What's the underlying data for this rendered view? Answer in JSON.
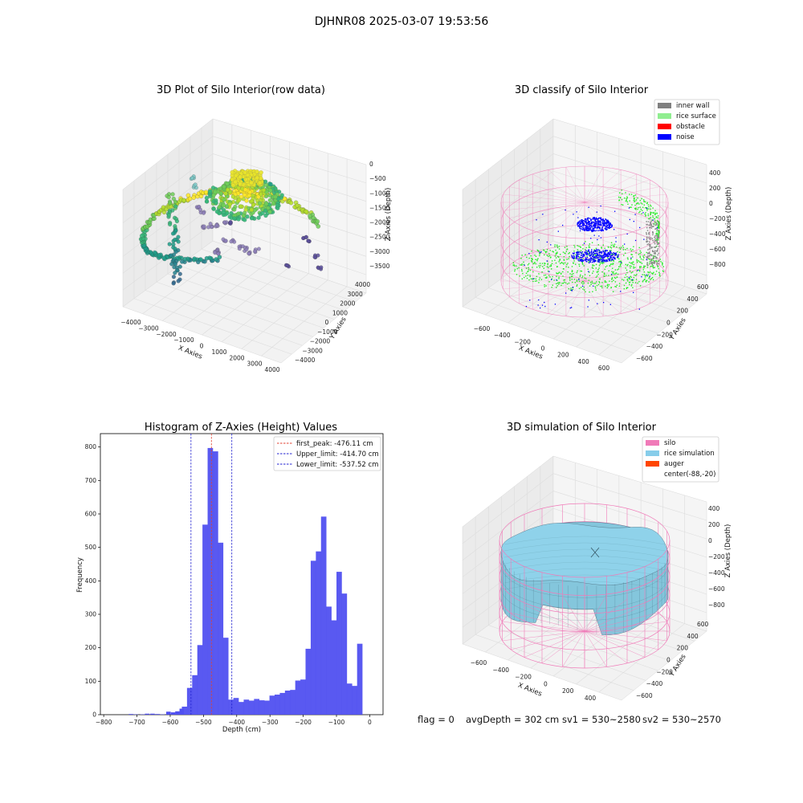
{
  "figure_title": "DJHNR08 2025-03-07 19:53:56",
  "colors": {
    "hist_bar": "#5050f0",
    "first_peak_line": "#e04030",
    "limit_line": "#2020d0",
    "silo_pink": "#f07ab8",
    "rice_blue": "#87cdea",
    "inner_wall": "#808080",
    "rice_surface": "#90ee90",
    "obstacle": "#ff0000",
    "noise": "#0000ff",
    "auger": "#ff4500",
    "point_green": "#3cc060",
    "point_blue": "#2080ff"
  },
  "status": {
    "flag": "flag = 0",
    "avg_depth": "avgDepth = 302 cm",
    "sv1": "sv1 = 530~2580",
    "sv2": "sv2 = 530~2570"
  },
  "chart_data": [
    {
      "id": "raw-plot",
      "type": "scatter",
      "title": "3D Plot of Silo Interior(row data)",
      "xlabel": "X Axies",
      "ylabel": "Y Axies",
      "zlabel": "Z Axies (Depth)",
      "x_ticks": [
        "−4000",
        "−3000",
        "−2000",
        "−1000",
        "0",
        "1000",
        "2000",
        "3000",
        "4000"
      ],
      "y_ticks": [
        "−4000",
        "−3000",
        "−2000",
        "−1000",
        "0",
        "1000",
        "2000",
        "3000",
        "4000"
      ],
      "z_ticks": [
        "0",
        "−500",
        "−1000",
        "−1500",
        "−2000",
        "−2500",
        "−3000",
        "−3500"
      ],
      "xlim": [
        -4500,
        4000
      ],
      "ylim": [
        -4500,
        4500
      ],
      "zlim": [
        -3800,
        200
      ]
    },
    {
      "id": "classify-plot",
      "type": "scatter",
      "title": "3D classify of Silo Interior",
      "xlabel": "X Axies",
      "ylabel": "Y Axies",
      "zlabel": "Z Axies (Depth)",
      "x_ticks": [
        "−600",
        "−400",
        "−200",
        "0",
        "200",
        "400",
        "600"
      ],
      "y_ticks": [
        "−600",
        "−400",
        "−200",
        "0",
        "200",
        "400",
        "600"
      ],
      "z_ticks": [
        "400",
        "200",
        "0",
        "−200",
        "−400",
        "−600",
        "−800"
      ],
      "xlim": [
        -700,
        650
      ],
      "ylim": [
        -700,
        700
      ],
      "zlim": [
        -900,
        450
      ],
      "legend": [
        {
          "label": "inner wall",
          "color_key": "inner_wall"
        },
        {
          "label": "rice surface",
          "color_key": "rice_surface"
        },
        {
          "label": "obstacle",
          "color_key": "obstacle"
        },
        {
          "label": "noise",
          "color_key": "noise"
        }
      ]
    },
    {
      "id": "histogram",
      "type": "bar",
      "title": "Histogram of Z-Axies (Height) Values",
      "xlabel": "Depth (cm)",
      "ylabel": "Frequency",
      "xlim": [
        -810,
        40
      ],
      "ylim": [
        0,
        840
      ],
      "x_ticks": [
        -800,
        -700,
        -600,
        -500,
        -400,
        -300,
        -200,
        -100,
        0
      ],
      "y_ticks": [
        0,
        100,
        200,
        300,
        400,
        500,
        600,
        700,
        800
      ],
      "bin_start": -565,
      "bin_width": 15.5,
      "values": [
        24,
        80,
        118,
        208,
        568,
        797,
        787,
        514,
        230,
        45,
        50,
        38,
        45,
        42,
        47,
        43,
        42,
        57,
        60,
        65,
        72,
        74,
        102,
        105,
        197,
        460,
        488,
        592,
        323,
        282,
        427,
        362,
        93,
        86,
        212
      ],
      "sparse_bins": [
        {
          "x": -725,
          "v": 2
        },
        {
          "x": -710,
          "v": 1
        },
        {
          "x": -690,
          "v": 1
        },
        {
          "x": -676,
          "v": 3
        },
        {
          "x": -660,
          "v": 3
        },
        {
          "x": -645,
          "v": 2
        },
        {
          "x": -630,
          "v": 1
        },
        {
          "x": -612,
          "v": 9
        },
        {
          "x": -598,
          "v": 7
        },
        {
          "x": -585,
          "v": 10
        },
        {
          "x": -572,
          "v": 18
        }
      ],
      "lines": [
        {
          "label": "first_peak: -476.11 cm",
          "x": -476.11,
          "color_key": "first_peak_line"
        },
        {
          "label": "Upper_limit: -414.70 cm",
          "x": -414.7,
          "color_key": "limit_line"
        },
        {
          "label": "Lower_limit: -537.52 cm",
          "x": -537.52,
          "color_key": "limit_line"
        }
      ]
    },
    {
      "id": "simulation-plot",
      "type": "surface",
      "title": "3D simulation of Silo Interior",
      "xlabel": "X Axies",
      "ylabel": "Y Axies",
      "zlabel": "Z Axies (Depth)",
      "x_ticks": [
        "−600",
        "−400",
        "−200",
        "0",
        "200",
        "400"
      ],
      "y_ticks": [
        "−600",
        "−400",
        "−200",
        "0",
        "200",
        "400",
        "600"
      ],
      "z_ticks": [
        "400",
        "200",
        "0",
        "−200",
        "−400",
        "−600",
        "−800"
      ],
      "xlim": [
        -700,
        450
      ],
      "ylim": [
        -700,
        700
      ],
      "zlim": [
        -900,
        450
      ],
      "legend": [
        {
          "label": "silo",
          "color_key": "silo_pink"
        },
        {
          "label": "rice simulation",
          "color_key": "rice_blue"
        },
        {
          "label": "auger",
          "color_key": "auger"
        },
        {
          "label": "center(-88,-20)",
          "color_key": ""
        }
      ]
    }
  ]
}
